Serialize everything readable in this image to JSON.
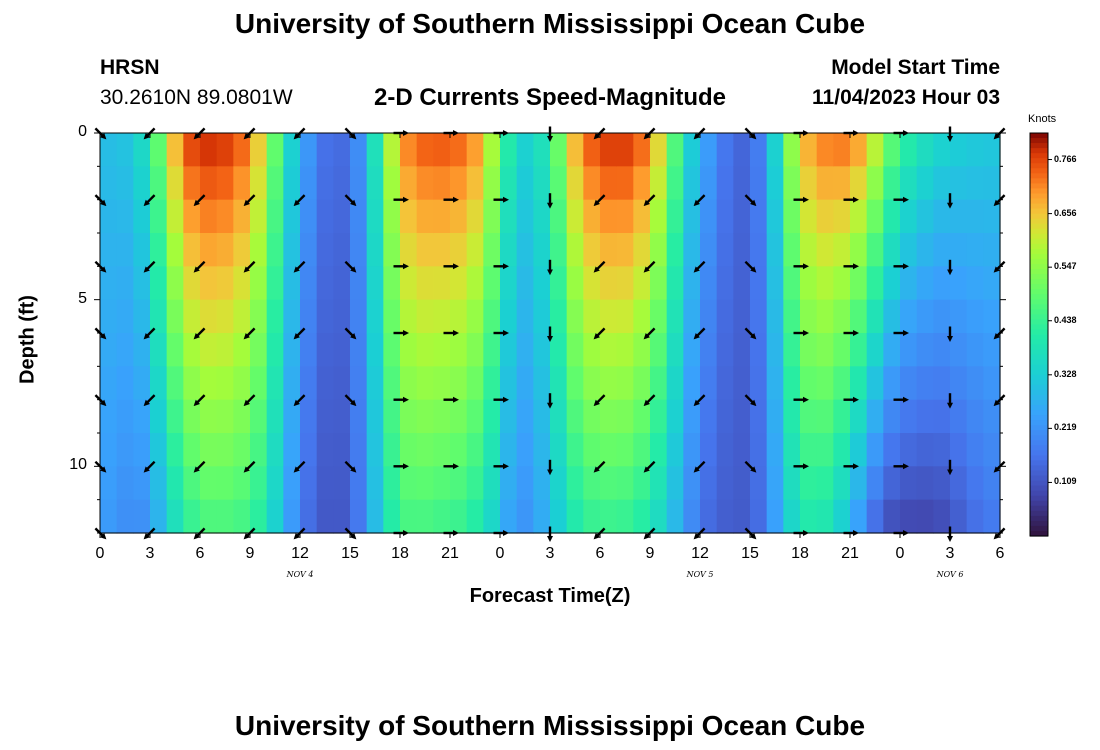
{
  "page": {
    "title": "University of Southern Mississippi Ocean Cube",
    "title_repeat": "University of Southern Mississippi Ocean Cube"
  },
  "header": {
    "station": "HRSN",
    "coords": "30.2610N  89.0801W",
    "plot_title": "2-D Currents Speed-Magnitude",
    "model_label": "Model Start Time",
    "model_time": "11/04/2023 Hour 03"
  },
  "chart_data": {
    "type": "heatmap",
    "title": "2-D Currents Speed-Magnitude",
    "xlabel": "Forecast Time(Z)",
    "ylabel": "Depth (ft)",
    "colorbar_label": "Knots",
    "colorbar_ticks": [
      "0.766",
      "0.656",
      "0.547",
      "0.438",
      "0.328",
      "0.219",
      "0.109"
    ],
    "x_ticks": [
      "0",
      "3",
      "6",
      "9",
      "12",
      "15",
      "18",
      "21",
      "0",
      "3",
      "6",
      "9",
      "12",
      "15",
      "18",
      "21",
      "0",
      "3",
      "6"
    ],
    "y_ticks": [
      "0",
      "5",
      "10"
    ],
    "date_labels": [
      {
        "label": "NOV 4",
        "hour": 12
      },
      {
        "label": "NOV 5",
        "hour": 36
      },
      {
        "label": "NOV 6",
        "hour": 51
      }
    ],
    "x_range_hours": [
      0,
      54
    ],
    "depth_range_ft": [
      0,
      12
    ],
    "colorscale_range": [
      0.0,
      0.82
    ],
    "profile_hours": [
      0,
      1,
      2,
      3,
      4,
      5,
      6,
      7,
      8,
      9,
      10,
      11,
      12,
      13,
      14,
      15,
      16,
      17,
      18,
      19,
      20,
      21,
      22,
      23,
      24,
      25,
      26,
      27,
      28,
      29,
      30,
      31,
      32,
      33,
      34,
      35,
      36,
      37,
      38,
      39,
      40,
      41,
      42,
      43,
      44,
      45,
      46,
      47,
      48,
      49,
      50,
      51,
      52,
      53,
      54
    ],
    "surface_speed": [
      0.3,
      0.3,
      0.32,
      0.4,
      0.6,
      0.76,
      0.8,
      0.8,
      0.78,
      0.72,
      0.6,
      0.4,
      0.28,
      0.18,
      0.14,
      0.16,
      0.26,
      0.5,
      0.7,
      0.75,
      0.76,
      0.76,
      0.74,
      0.68,
      0.5,
      0.32,
      0.36,
      0.4,
      0.62,
      0.74,
      0.78,
      0.8,
      0.78,
      0.72,
      0.58,
      0.38,
      0.28,
      0.2,
      0.14,
      0.14,
      0.22,
      0.46,
      0.66,
      0.72,
      0.74,
      0.74,
      0.68,
      0.56,
      0.44,
      0.4,
      0.36,
      0.34,
      0.33,
      0.32,
      0.32
    ],
    "bottom_speed": [
      0.24,
      0.22,
      0.2,
      0.22,
      0.32,
      0.4,
      0.45,
      0.46,
      0.45,
      0.44,
      0.38,
      0.28,
      0.18,
      0.12,
      0.11,
      0.12,
      0.22,
      0.36,
      0.44,
      0.46,
      0.44,
      0.44,
      0.42,
      0.38,
      0.3,
      0.2,
      0.24,
      0.28,
      0.36,
      0.42,
      0.43,
      0.43,
      0.42,
      0.38,
      0.32,
      0.24,
      0.16,
      0.13,
      0.12,
      0.12,
      0.18,
      0.3,
      0.38,
      0.4,
      0.36,
      0.28,
      0.18,
      0.1,
      0.08,
      0.08,
      0.08,
      0.1,
      0.14,
      0.16,
      0.18
    ],
    "vector_hours": [
      0,
      3,
      6,
      9,
      12,
      15,
      18,
      21,
      24,
      27,
      30,
      33,
      36,
      39,
      42,
      45,
      48,
      51,
      54
    ],
    "vector_depths_ft": [
      0,
      2,
      4,
      6,
      8,
      10,
      12
    ],
    "vector_directions_deg": [
      135,
      225,
      225,
      225,
      225,
      135,
      90,
      90,
      90,
      180,
      225,
      225,
      225,
      135,
      90,
      90,
      90,
      180,
      225
    ]
  }
}
